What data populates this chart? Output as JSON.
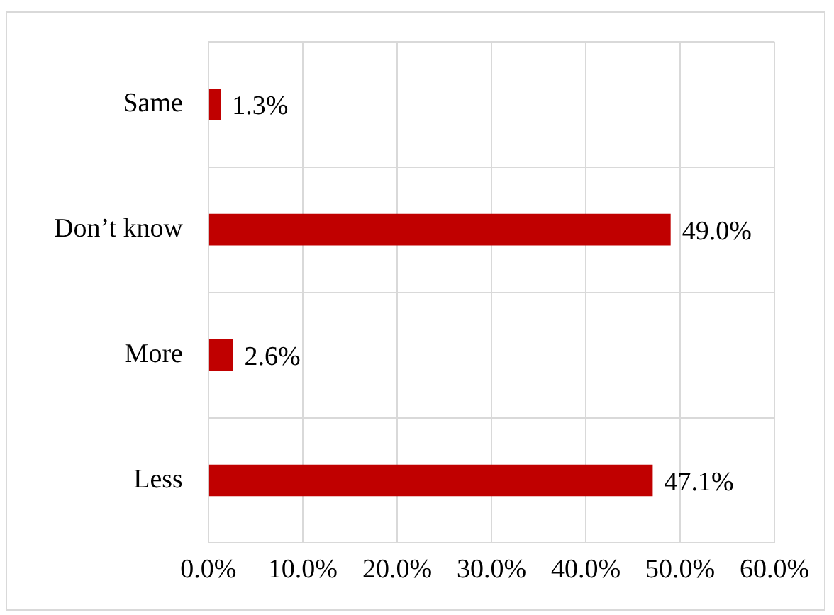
{
  "chart_data": {
    "type": "bar",
    "orientation": "horizontal",
    "categories": [
      "Same",
      "Don’t know",
      "More",
      "Less"
    ],
    "values": [
      1.3,
      49.0,
      2.6,
      47.1
    ],
    "color": "#c00000",
    "value_labels": [
      "1.3%",
      "49.0%",
      "2.6%",
      "47.1%"
    ],
    "xlim": [
      0,
      60
    ],
    "xticks": [
      {
        "value": 0,
        "label": "0.0%"
      },
      {
        "value": 10,
        "label": "10.0%"
      },
      {
        "value": 20,
        "label": "20.0%"
      },
      {
        "value": 30,
        "label": "30.0%"
      },
      {
        "value": 40,
        "label": "40.0%"
      },
      {
        "value": 50,
        "label": "50.0%"
      },
      {
        "value": 60,
        "label": "60.0%"
      }
    ],
    "grid": true
  }
}
